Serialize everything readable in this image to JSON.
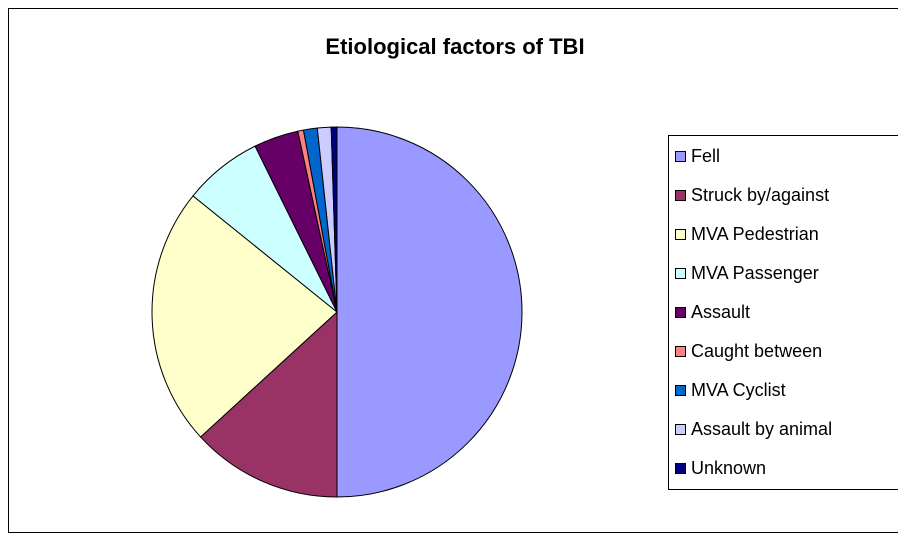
{
  "chart_data": {
    "type": "pie",
    "title": "Etiological factors of TBI",
    "categories": [
      "Fell",
      "Struck by/against",
      "MVA Pedestrian",
      "MVA Passenger",
      "Assault",
      "Caught between",
      "MVA Cyclist",
      "Assault by animal",
      "Unknown"
    ],
    "values": [
      50,
      13.2,
      22.6,
      6.9,
      3.9,
      0.5,
      1.2,
      1.2,
      0.5
    ],
    "colors": [
      "#9999ff",
      "#993366",
      "#ffffcc",
      "#ccffff",
      "#660066",
      "#ff8080",
      "#0066cc",
      "#ccccff",
      "#000080"
    ],
    "legend": "right"
  }
}
